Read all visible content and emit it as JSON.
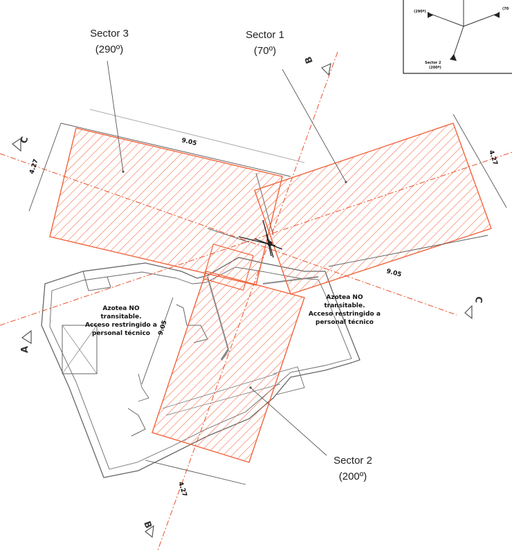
{
  "colors": {
    "hatch": "#f0643c",
    "line": "#555555",
    "axis": "#e8502a",
    "dim": "#444444"
  },
  "sectors": [
    {
      "id": "sector1",
      "name": "Sector 1",
      "azimuth": "(70º)"
    },
    {
      "id": "sector2",
      "name": "Sector 2",
      "azimuth": "(200º)"
    },
    {
      "id": "sector3",
      "name": "Sector 3",
      "azimuth": "(290º)"
    }
  ],
  "dimensions": {
    "s3_length": "9.05",
    "s3_width": "4.27",
    "s1_length": "9.05",
    "s1_width": "4.27",
    "s2_length": "9.05",
    "s2_width": "4.27"
  },
  "notes": {
    "left": [
      "Azotea NO",
      "transitable.",
      "Acceso restringido a",
      "personal técnico"
    ],
    "right": [
      "Azotea NO",
      "transitable.",
      "Acceso restringido a",
      "personal técnico"
    ]
  },
  "section_marks": {
    "a": "A",
    "b_top": "B",
    "b_bottom": "B",
    "c_left": "C",
    "c_right": "C"
  },
  "inset": {
    "s3": "(290º)",
    "s1": "(70",
    "s2_name": "Sector 2",
    "s2_az": "(200º)"
  }
}
